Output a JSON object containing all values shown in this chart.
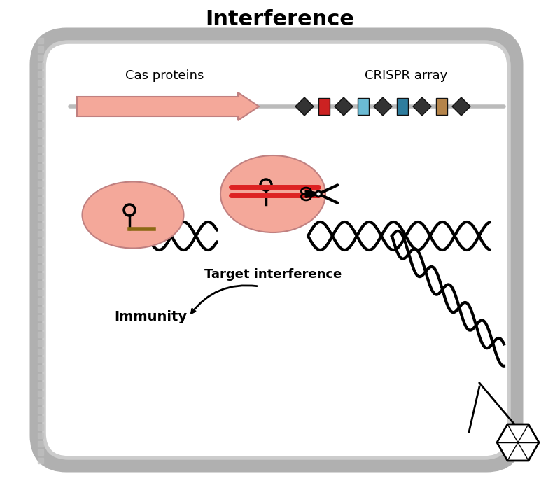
{
  "title": "Interference",
  "title_fontsize": 22,
  "title_fontweight": "bold",
  "bg_color": "#ffffff",
  "cell_color": "#f0f0f0",
  "cell_border_color": "#aaaaaa",
  "salmon_color": "#f4a89a",
  "cas_label": "Cas proteins",
  "crispr_label": "CRISPR array",
  "target_label": "Target interference",
  "immunity_label": "Immunity",
  "diamond_color": "#333333",
  "repeat_colors": [
    "#cc2222",
    "#6bbbd4",
    "#2e7d9e",
    "#b5844a"
  ],
  "arrow_color": "#f4a89a",
  "dna_color": "#111111",
  "scissors_color": "#111111",
  "red_line_color": "#dd2222"
}
